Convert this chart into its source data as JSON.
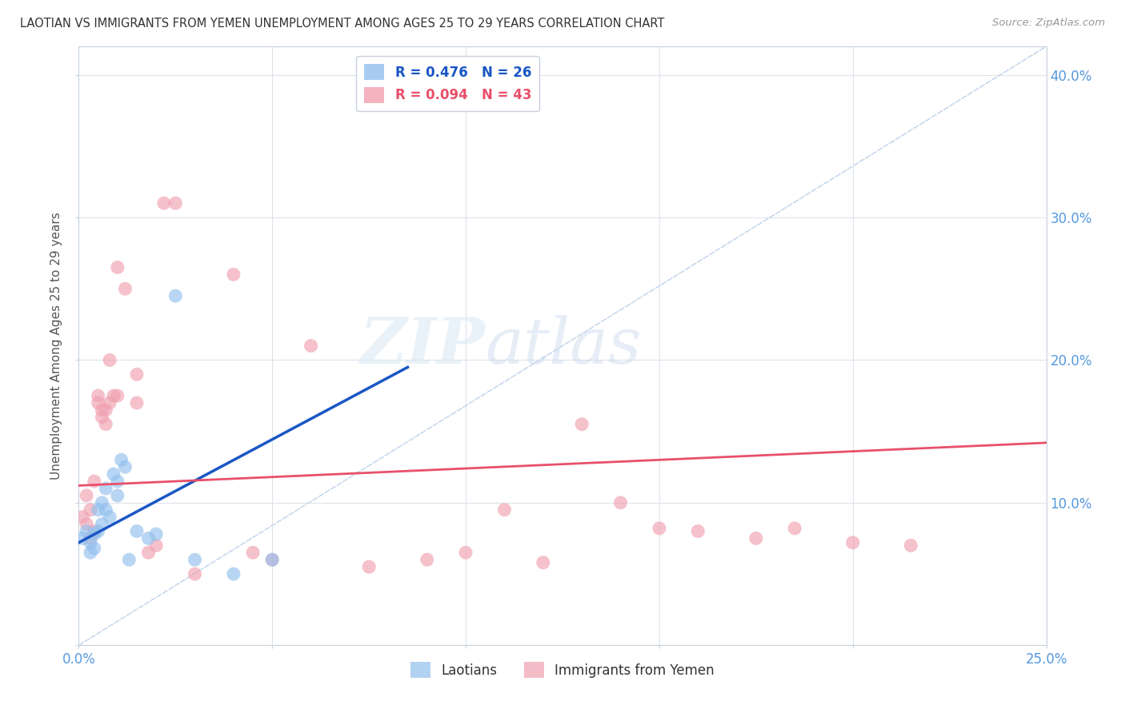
{
  "title": "LAOTIAN VS IMMIGRANTS FROM YEMEN UNEMPLOYMENT AMONG AGES 25 TO 29 YEARS CORRELATION CHART",
  "source": "Source: ZipAtlas.com",
  "ylabel": "Unemployment Among Ages 25 to 29 years",
  "xlim": [
    0.0,
    0.25
  ],
  "ylim": [
    0.0,
    0.42
  ],
  "xticks": [
    0.0,
    0.05,
    0.1,
    0.15,
    0.2,
    0.25
  ],
  "xticklabels": [
    "0.0%",
    "",
    "",
    "",
    "",
    "25.0%"
  ],
  "yticks": [
    0.0,
    0.1,
    0.2,
    0.3,
    0.4
  ],
  "yticklabels_right": [
    "",
    "10.0%",
    "20.0%",
    "30.0%",
    "40.0%"
  ],
  "watermark_zip": "ZIP",
  "watermark_atlas": "atlas",
  "legend_entry_1": "R = 0.476   N = 26",
  "legend_entry_2": "R = 0.094   N = 43",
  "laotian_color": "#92c0ed",
  "yemen_color": "#f0a0b0",
  "laotian_line_color": "#1a56c4",
  "yemen_line_color": "#e8506a",
  "diagonal_color": "#c8d8ec",
  "background_color": "#ffffff",
  "grid_color": "#dde3ec",
  "laotian_points": [
    [
      0.001,
      0.075
    ],
    [
      0.002,
      0.08
    ],
    [
      0.003,
      0.065
    ],
    [
      0.003,
      0.072
    ],
    [
      0.004,
      0.078
    ],
    [
      0.004,
      0.068
    ],
    [
      0.005,
      0.095
    ],
    [
      0.005,
      0.08
    ],
    [
      0.006,
      0.1
    ],
    [
      0.006,
      0.085
    ],
    [
      0.007,
      0.11
    ],
    [
      0.007,
      0.095
    ],
    [
      0.008,
      0.09
    ],
    [
      0.009,
      0.12
    ],
    [
      0.01,
      0.105
    ],
    [
      0.01,
      0.115
    ],
    [
      0.011,
      0.13
    ],
    [
      0.012,
      0.125
    ],
    [
      0.013,
      0.06
    ],
    [
      0.015,
      0.08
    ],
    [
      0.018,
      0.075
    ],
    [
      0.02,
      0.078
    ],
    [
      0.025,
      0.245
    ],
    [
      0.03,
      0.06
    ],
    [
      0.04,
      0.05
    ],
    [
      0.05,
      0.06
    ]
  ],
  "yemen_points": [
    [
      0.001,
      0.09
    ],
    [
      0.002,
      0.085
    ],
    [
      0.002,
      0.105
    ],
    [
      0.003,
      0.075
    ],
    [
      0.003,
      0.095
    ],
    [
      0.004,
      0.08
    ],
    [
      0.004,
      0.115
    ],
    [
      0.005,
      0.17
    ],
    [
      0.005,
      0.175
    ],
    [
      0.006,
      0.165
    ],
    [
      0.006,
      0.16
    ],
    [
      0.007,
      0.155
    ],
    [
      0.007,
      0.165
    ],
    [
      0.008,
      0.17
    ],
    [
      0.008,
      0.2
    ],
    [
      0.009,
      0.175
    ],
    [
      0.01,
      0.175
    ],
    [
      0.01,
      0.265
    ],
    [
      0.012,
      0.25
    ],
    [
      0.015,
      0.19
    ],
    [
      0.015,
      0.17
    ],
    [
      0.018,
      0.065
    ],
    [
      0.02,
      0.07
    ],
    [
      0.022,
      0.31
    ],
    [
      0.025,
      0.31
    ],
    [
      0.03,
      0.05
    ],
    [
      0.04,
      0.26
    ],
    [
      0.045,
      0.065
    ],
    [
      0.05,
      0.06
    ],
    [
      0.06,
      0.21
    ],
    [
      0.075,
      0.055
    ],
    [
      0.09,
      0.06
    ],
    [
      0.1,
      0.065
    ],
    [
      0.11,
      0.095
    ],
    [
      0.12,
      0.058
    ],
    [
      0.13,
      0.155
    ],
    [
      0.14,
      0.1
    ],
    [
      0.15,
      0.082
    ],
    [
      0.16,
      0.08
    ],
    [
      0.175,
      0.075
    ],
    [
      0.185,
      0.082
    ],
    [
      0.2,
      0.072
    ],
    [
      0.215,
      0.07
    ]
  ],
  "laotian_trend_x": [
    0.0,
    0.085
  ],
  "laotian_trend_y": [
    0.072,
    0.195
  ],
  "yemen_trend_x": [
    0.0,
    0.25
  ],
  "yemen_trend_y": [
    0.112,
    0.142
  ]
}
